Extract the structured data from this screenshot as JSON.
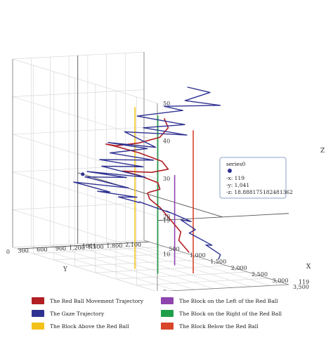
{
  "chart_data": {
    "type": "line3d",
    "axes": {
      "x": {
        "label": "X",
        "range": [
          0,
          3500
        ],
        "ticks": [
          "500",
          "1,000",
          "1,500",
          "2,000",
          "2,500",
          "3,000",
          "3,500"
        ]
      },
      "y": {
        "label": "Y",
        "range": [
          0,
          2100
        ],
        "ticks": [
          "0",
          "300",
          "600",
          "900",
          "1,200",
          "1,500",
          "1,800",
          "2,100"
        ]
      },
      "z": {
        "label": "Z",
        "range": [
          0,
          50
        ],
        "ticks": [
          "0",
          "10",
          "20",
          "30",
          "40",
          "50"
        ]
      }
    },
    "wall_markers": {
      "y_wall": "1041",
      "x_wall": "119",
      "z_wall": "19"
    },
    "grid": true,
    "tooltip": {
      "title": "series0",
      "x": "119",
      "y": "1,041",
      "z": "18.888175182481362"
    },
    "legend_position": "bottom",
    "series": [
      {
        "name": "The Red Ball Movement Trajectory",
        "color": "#b11f24"
      },
      {
        "name": "The Gaze Trajectory",
        "color": "#2e3192"
      },
      {
        "name": "The Block Above the Red Ball",
        "color": "#f2c21a"
      },
      {
        "name": "The Block on the Left of the Red Ball",
        "color": "#8e44ad"
      },
      {
        "name": "The Block on the Right of the Red Ball",
        "color": "#1e9e4a"
      },
      {
        "name": "The Block Below the Red Ball",
        "color": "#d7452b"
      }
    ],
    "series_points": {
      "gaze": [
        [
          1500,
          1800,
          46
        ],
        [
          2200,
          1700,
          47
        ],
        [
          1900,
          1500,
          44
        ],
        [
          2600,
          1600,
          45
        ],
        [
          1700,
          1300,
          42
        ],
        [
          2300,
          1200,
          43
        ],
        [
          1500,
          1000,
          39
        ],
        [
          2500,
          1100,
          40
        ],
        [
          1800,
          900,
          37
        ],
        [
          2700,
          1000,
          38
        ],
        [
          1500,
          800,
          35
        ],
        [
          2400,
          700,
          34
        ],
        [
          1400,
          600,
          32
        ],
        [
          2200,
          700,
          33
        ],
        [
          1600,
          500,
          30
        ],
        [
          2500,
          600,
          31
        ],
        [
          1500,
          400,
          28
        ],
        [
          2400,
          500,
          29
        ],
        [
          1700,
          300,
          27
        ],
        [
          2600,
          400,
          27
        ],
        [
          1500,
          200,
          25
        ],
        [
          2300,
          300,
          26
        ],
        [
          1600,
          100,
          24
        ],
        [
          2500,
          200,
          24
        ],
        [
          1400,
          50,
          22
        ],
        [
          2200,
          100,
          22
        ],
        [
          1600,
          300,
          20
        ],
        [
          2400,
          400,
          21
        ],
        [
          1800,
          500,
          19
        ],
        [
          2000,
          700,
          18
        ],
        [
          1700,
          900,
          17
        ],
        [
          2300,
          1000,
          16
        ],
        [
          1900,
          1200,
          15
        ],
        [
          2200,
          1400,
          13
        ],
        [
          1800,
          1500,
          12
        ],
        [
          2000,
          1600,
          10
        ],
        [
          1700,
          1700,
          8
        ],
        [
          2100,
          1800,
          6
        ],
        [
          1800,
          1900,
          5
        ],
        [
          2000,
          2000,
          3
        ],
        [
          1800,
          2100,
          1
        ]
      ],
      "red_ball": [
        [
          2000,
          1100,
          40
        ],
        [
          2400,
          900,
          39
        ],
        [
          2500,
          700,
          37
        ],
        [
          2300,
          500,
          35
        ],
        [
          1900,
          400,
          33
        ],
        [
          1500,
          500,
          32
        ],
        [
          1400,
          700,
          31
        ],
        [
          1700,
          900,
          30
        ],
        [
          2100,
          1000,
          29
        ],
        [
          2400,
          900,
          28
        ],
        [
          2300,
          700,
          27
        ],
        [
          1900,
          600,
          26
        ],
        [
          1600,
          700,
          25
        ],
        [
          1700,
          900,
          24
        ],
        [
          2000,
          1000,
          23
        ],
        [
          2200,
          900,
          22
        ],
        [
          2100,
          800,
          21
        ],
        [
          1900,
          900,
          20
        ],
        [
          1800,
          1000,
          18
        ],
        [
          1900,
          1100,
          16
        ],
        [
          2000,
          1200,
          13
        ],
        [
          2100,
          1300,
          10
        ],
        [
          1900,
          1400,
          7
        ],
        [
          2000,
          1500,
          4
        ]
      ],
      "blocks": [
        {
          "series": 2,
          "x": 1900,
          "y": 700,
          "z_top": 43
        },
        {
          "series": 3,
          "x": 1800,
          "y": 1400,
          "z_top": 24
        },
        {
          "series": 4,
          "x": 2300,
          "y": 800,
          "z_top": 42
        },
        {
          "series": 5,
          "x": 2400,
          "y": 1300,
          "z_top": 38
        }
      ]
    }
  }
}
